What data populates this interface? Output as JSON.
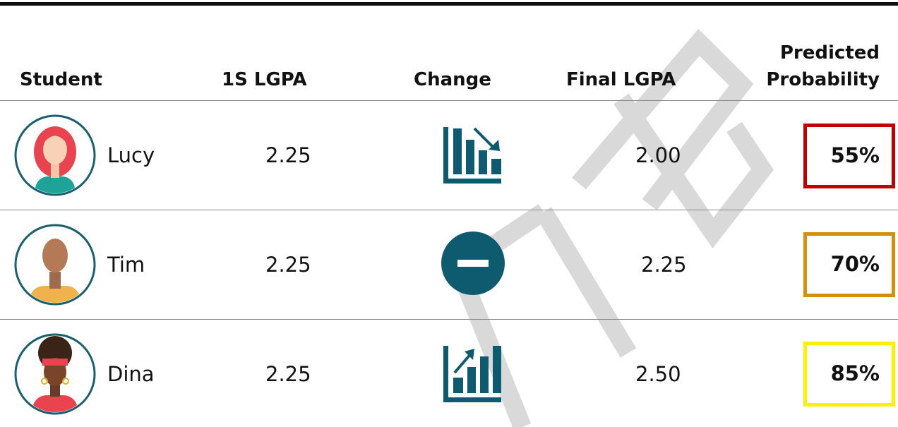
{
  "header": {
    "columns": [
      "Student",
      "1S LGPA",
      "Change",
      "Final LGPA",
      "Predicted Probability"
    ]
  },
  "rows": [
    {
      "name": "Lucy",
      "first_lgpa": "2.25",
      "final_lgpa": "2.00",
      "probability": "55%"
    },
    {
      "name": "Tim",
      "first_lgpa": "2.25",
      "final_lgpa": "2.25",
      "probability": "70%"
    },
    {
      "name": "Dina",
      "first_lgpa": "2.25",
      "final_lgpa": "2.50",
      "probability": "85%"
    }
  ]
}
